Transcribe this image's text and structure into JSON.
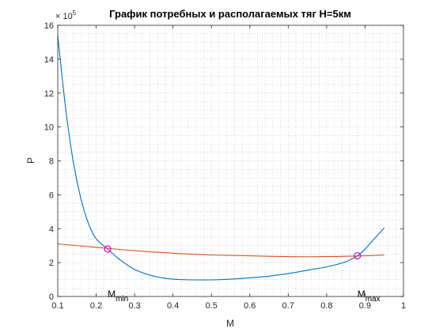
{
  "chart_data": {
    "type": "line",
    "title": "График потребных и располагаемых тяг H=5км",
    "xlabel": "M",
    "ylabel": "P",
    "y_exponent_base": "× 10",
    "y_exponent_power": "5",
    "xlim": [
      0.1,
      1.0
    ],
    "ylim": [
      0,
      16
    ],
    "xticks": [
      0.1,
      0.2,
      0.3,
      0.4,
      0.5,
      0.6,
      0.7,
      0.8,
      0.9,
      1.0
    ],
    "yticks": [
      0,
      2,
      4,
      6,
      8,
      10,
      12,
      14,
      16
    ],
    "xtick_labels": [
      "0.1",
      "0.2",
      "0.3",
      "0.4",
      "0.5",
      "0.6",
      "0.7",
      "0.8",
      "0.9",
      "1"
    ],
    "ytick_labels": [
      "0",
      "2",
      "4",
      "6",
      "8",
      "10",
      "12",
      "14",
      "16"
    ],
    "grid": "minor-dotted",
    "series": [
      {
        "color": "#0072BD",
        "x": [
          0.1,
          0.12,
          0.14,
          0.16,
          0.18,
          0.2,
          0.23,
          0.26,
          0.3,
          0.35,
          0.4,
          0.45,
          0.5,
          0.55,
          0.6,
          0.65,
          0.7,
          0.75,
          0.8,
          0.85,
          0.88,
          0.9,
          0.92,
          0.95
        ],
        "y": [
          15.4,
          11.2,
          8.0,
          5.8,
          4.3,
          3.4,
          2.8,
          2.2,
          1.6,
          1.2,
          1.02,
          0.98,
          0.98,
          1.02,
          1.1,
          1.2,
          1.35,
          1.55,
          1.75,
          2.05,
          2.4,
          2.8,
          3.3,
          4.05
        ]
      },
      {
        "color": "#D95319",
        "x": [
          0.1,
          0.2,
          0.3,
          0.4,
          0.5,
          0.6,
          0.7,
          0.8,
          0.9,
          0.95
        ],
        "y": [
          3.1,
          2.9,
          2.7,
          2.55,
          2.45,
          2.4,
          2.35,
          2.35,
          2.4,
          2.45
        ]
      }
    ],
    "markers": [
      {
        "x": 0.23,
        "y": 2.8,
        "label": "M",
        "sub": "min",
        "color": "#E000E0"
      },
      {
        "x": 0.88,
        "y": 2.4,
        "label": "M",
        "sub": "max",
        "color": "#E000E0"
      }
    ]
  }
}
